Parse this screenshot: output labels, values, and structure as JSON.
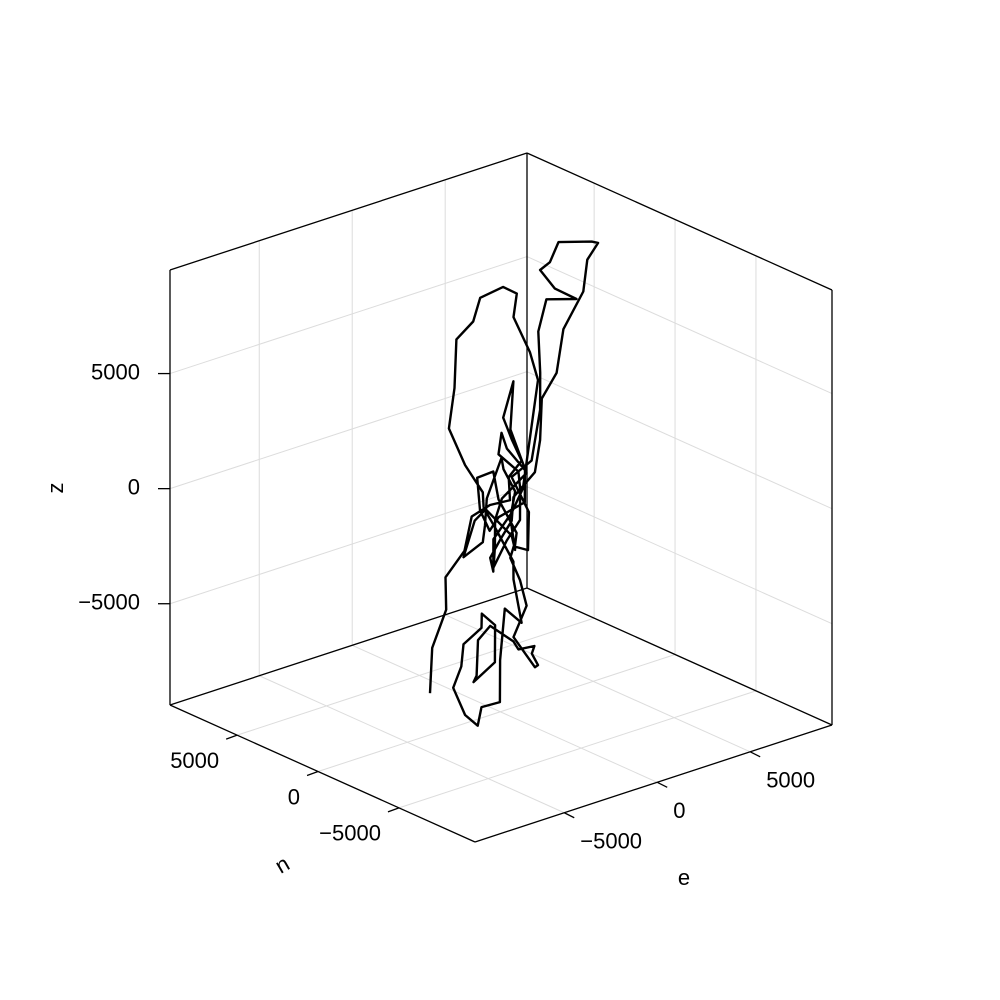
{
  "chart_data": {
    "type": "line3d",
    "xlabel": "e",
    "ylabel": "n",
    "zlabel": "z",
    "color": "#000000",
    "grid": true,
    "xlim": [
      -9800,
      9400
    ],
    "ylim": [
      -9700,
      9150
    ],
    "zlim": [
      -9400,
      9500
    ],
    "xticks": [
      {
        "value": -5000,
        "label": "−5000"
      },
      0,
      5000
    ],
    "yticks": [
      {
        "value": -5000,
        "label": "−5000"
      },
      0,
      5000
    ],
    "zticks": [
      {
        "value": -5000,
        "label": "−5000"
      },
      0,
      5000
    ],
    "x": [
      -3780,
      -3400,
      -3080,
      -2860,
      -2270,
      -1360,
      -550,
      260,
      800,
      1060,
      630,
      420,
      530,
      630,
      1060,
      260,
      -280,
      -550,
      -10,
      260,
      1060,
      1330,
      800,
      -10,
      -280,
      530,
      1330,
      1060,
      260,
      -660,
      -1090,
      -980,
      -550,
      -10,
      530,
      960,
      1490,
      1280,
      960,
      1600,
      2140,
      2410,
      1870,
      2570,
      3750,
      3110,
      2140,
      2410,
      3480,
      4830,
      5260,
      4940,
      4290,
      3480,
      2680,
      2410,
      2140,
      1600,
      1060,
      530,
      -10,
      -280,
      -550,
      -280,
      260,
      1390,
      2030,
      1330,
      1060,
      800,
      150,
      -820,
      -1630,
      -2270,
      -2810,
      -2590,
      -1890,
      -1200,
      -550,
      530,
      800,
      800,
      630,
      260,
      -280,
      -550,
      -820,
      -1200,
      -1630,
      -1460,
      -820,
      -10,
      530,
      800,
      800,
      420,
      -10,
      -280,
      -660,
      -1300,
      -1890,
      -2270,
      -2270,
      -1890,
      -1360,
      -820,
      -280,
      -550,
      -1090,
      -1360,
      -1200,
      -280,
      530,
      1060,
      1490,
      1870,
      2030,
      1600,
      1060,
      1330,
      1060,
      800,
      630
    ],
    "y": [
      0,
      300,
      -200,
      100,
      -400,
      200,
      0,
      -300,
      400,
      -100,
      0,
      300,
      -200,
      100,
      -400,
      200,
      0,
      -300,
      400,
      -100,
      0,
      300,
      -200,
      100,
      -400,
      200,
      0,
      -300,
      400,
      -100,
      0,
      300,
      -200,
      100,
      -400,
      200,
      0,
      -300,
      400,
      -100,
      0,
      300,
      -200,
      100,
      -400,
      200,
      0,
      -300,
      400,
      -100,
      0,
      300,
      -200,
      100,
      -400,
      200,
      0,
      -300,
      400,
      -100,
      0,
      300,
      -200,
      100,
      -400,
      200,
      0,
      -300,
      400,
      -100,
      0,
      300,
      -200,
      100,
      -400,
      200,
      0,
      -300,
      400,
      -100,
      0,
      300,
      -200,
      100,
      -400,
      200,
      0,
      -300,
      400,
      -100,
      0,
      300,
      -200,
      100,
      -400,
      200,
      0,
      -300,
      400,
      -100,
      0,
      300,
      -200,
      100,
      -400,
      200,
      0,
      -300,
      400,
      -100,
      0,
      300,
      -200,
      100,
      -400,
      200,
      0,
      -300,
      400,
      -100,
      0,
      300,
      -200
    ],
    "z": [
      -7590,
      -5820,
      -4080,
      -2830,
      -1680,
      -620,
      -270,
      -180,
      460,
      1260,
      2240,
      3170,
      4880,
      2670,
      820,
      -270,
      -990,
      -2010,
      -3240,
      -2000,
      -1350,
      -120,
      890,
      1760,
      2920,
      1830,
      750,
      -480,
      -1140,
      -1330,
      -350,
      930,
      1250,
      -200,
      -1640,
      -2540,
      -2770,
      -970,
      420,
      1120,
      3150,
      4600,
      6690,
      7810,
      7670,
      8100,
      9230,
      9590,
      9960,
      9780,
      9580,
      8840,
      7790,
      6270,
      4740,
      3510,
      1840,
      680,
      -480,
      -1210,
      -1930,
      -2730,
      -3100,
      -1860,
      -700,
      -130,
      4480,
      5970,
      7340,
      8590,
      9020,
      8710,
      8050,
      7350,
      5540,
      3530,
      1820,
      550,
      -490,
      -1860,
      -2580,
      -1280,
      70,
      1040,
      1830,
      -50,
      -1070,
      -1620,
      -2380,
      -680,
      -420,
      -1500,
      -2950,
      -3890,
      -5620,
      -5090,
      -7150,
      -8810,
      -9150,
      -9630,
      -9040,
      -7850,
      -6770,
      -6000,
      -5270,
      -4980,
      -5560,
      -7010,
      -7950,
      -7440,
      -5970,
      -5690,
      -6420,
      -7000,
      -6810,
      -7430,
      -7910,
      -7790,
      -6560,
      -5110,
      -3960,
      -3020,
      -2100
    ]
  }
}
